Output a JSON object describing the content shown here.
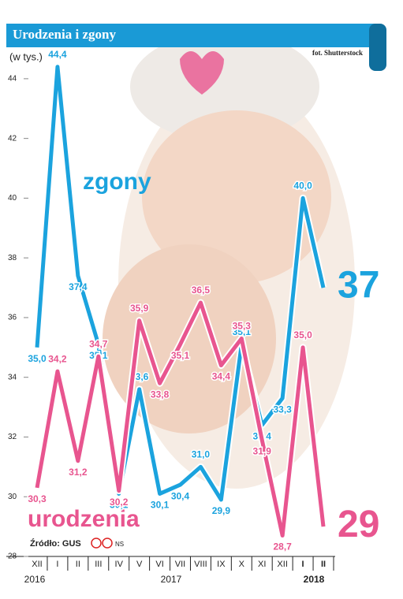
{
  "chart_data": {
    "type": "line",
    "title": "Urodzenia i zgony",
    "credit": "fot. Shutterstock",
    "y_label": "(w tys.)",
    "source": "Źródło: GUS",
    "author": "NS",
    "categories": [
      "XII",
      "I",
      "II",
      "III",
      "IV",
      "V",
      "VI",
      "VII",
      "VIII",
      "IX",
      "X",
      "XI",
      "XII",
      "I",
      "II"
    ],
    "year_labels": [
      "2016",
      "2017",
      "2018"
    ],
    "ylim": [
      28,
      45
    ],
    "yticks": [
      28,
      30,
      32,
      34,
      36,
      38,
      40,
      42,
      44
    ],
    "series": [
      {
        "name": "zgony",
        "color": "#1ba3de",
        "values": [
          35.0,
          44.4,
          37.4,
          35.1,
          30.1,
          33.6,
          30.1,
          30.4,
          31.0,
          29.9,
          35.1,
          32.4,
          33.3,
          40.0,
          37
        ],
        "value_labels": [
          "35,0",
          "44,4",
          "37,4",
          "35,1",
          "30,1",
          "33,6",
          "30,1",
          "30,4",
          "31,0",
          "29,9",
          "35,1",
          "32,4",
          "33,3",
          "40,0",
          "37"
        ]
      },
      {
        "name": "urodzenia",
        "color": "#e8558f",
        "values": [
          30.3,
          34.2,
          31.2,
          34.7,
          30.2,
          35.9,
          33.8,
          35.1,
          36.5,
          34.4,
          35.3,
          31.9,
          28.7,
          35.0,
          29
        ],
        "value_labels": [
          "30,3",
          "34,2",
          "31,2",
          "34,7",
          "30,2",
          "35,9",
          "33,8",
          "35,1",
          "36,5",
          "34,4",
          "35,3",
          "31,9",
          "28,7",
          "35,0",
          "29"
        ]
      }
    ]
  }
}
